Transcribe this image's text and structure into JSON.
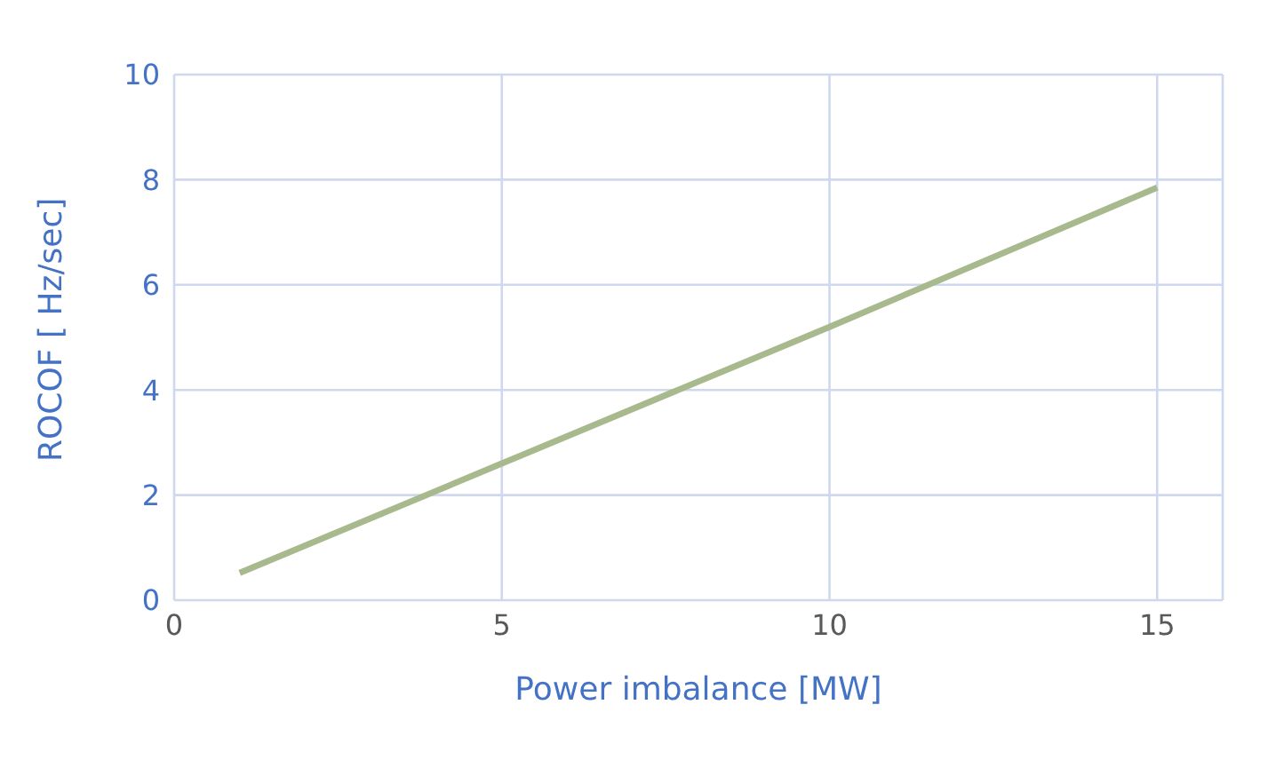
{
  "chart_data": {
    "type": "line",
    "xlabel": "Power imbalance [MW]",
    "ylabel": "ROCOF [ Hz/sec]",
    "x": [
      1,
      5,
      10,
      15
    ],
    "series": [
      {
        "color": "#a9b98e",
        "values": [
          0.52,
          2.6,
          5.2,
          7.85
        ]
      }
    ],
    "xlim": [
      0,
      16
    ],
    "xticks": [
      0,
      5,
      10,
      15
    ],
    "ylim": [
      0,
      10
    ],
    "yticks": [
      0,
      2,
      4,
      6,
      8,
      10
    ],
    "grid": true,
    "marker": "none",
    "line_style": "solid"
  }
}
